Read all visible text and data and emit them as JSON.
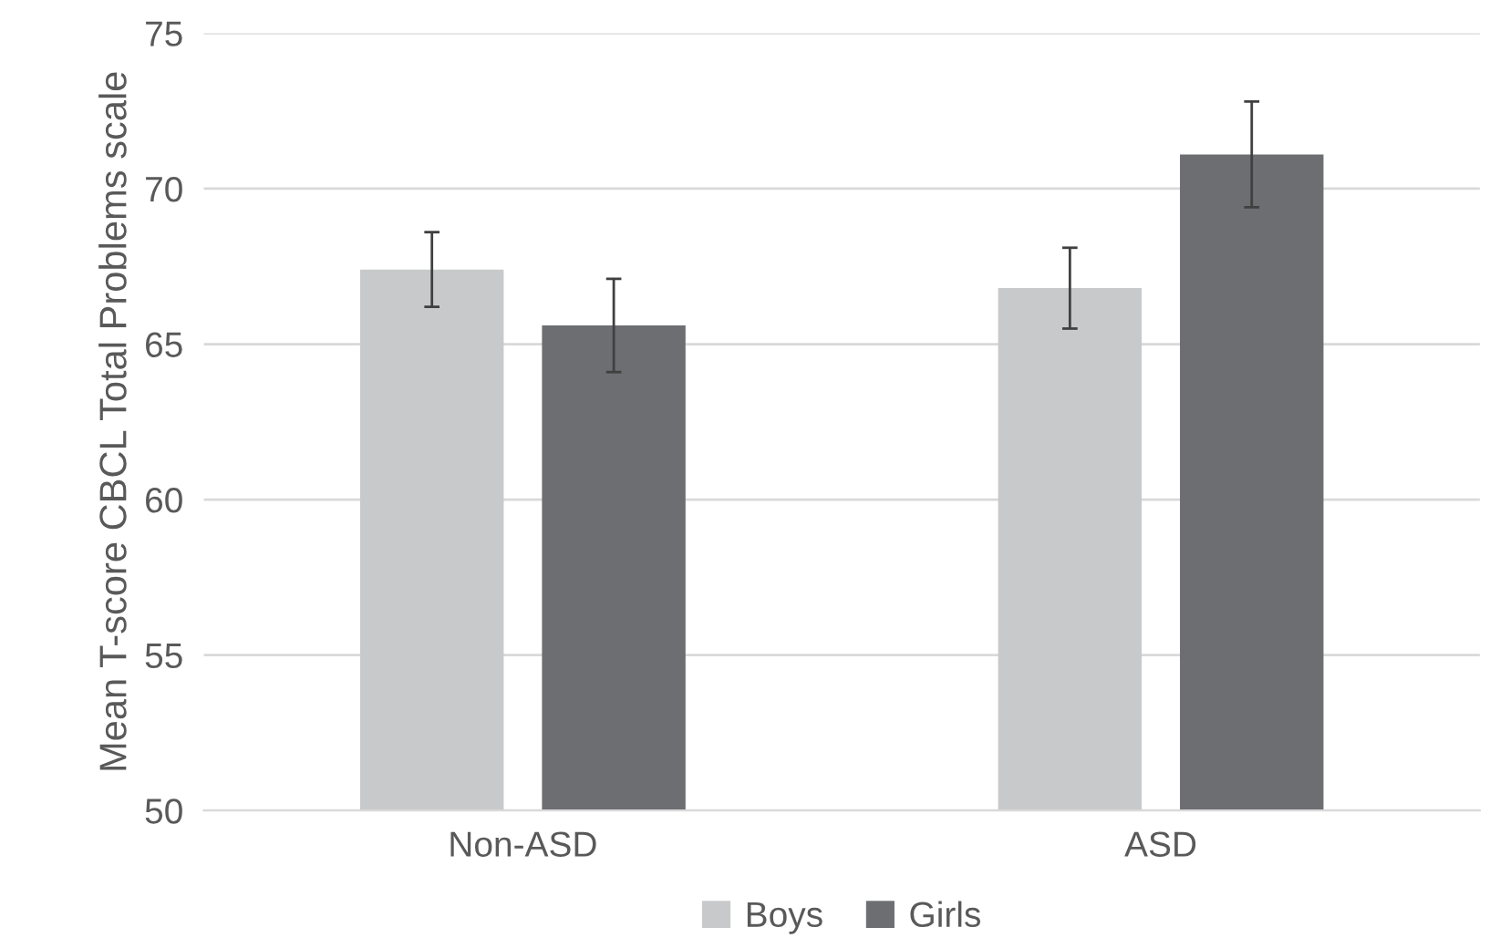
{
  "chart_data": {
    "type": "bar",
    "ylabel": "Mean T-score CBCL Total Problems scale",
    "categories": [
      "Non-ASD",
      "ASD"
    ],
    "series": [
      {
        "name": "Boys",
        "color": "#c8c9cb",
        "values": [
          67.4,
          66.8
        ],
        "errors": [
          1.2,
          1.3
        ]
      },
      {
        "name": "Girls",
        "color": "#6d6e71",
        "values": [
          65.6,
          71.1
        ],
        "errors": [
          1.5,
          1.7
        ]
      }
    ],
    "ylim": [
      50,
      75
    ],
    "yticks": [
      50,
      55,
      60,
      65,
      70,
      75
    ],
    "grid": "y",
    "legend": "bottom"
  }
}
